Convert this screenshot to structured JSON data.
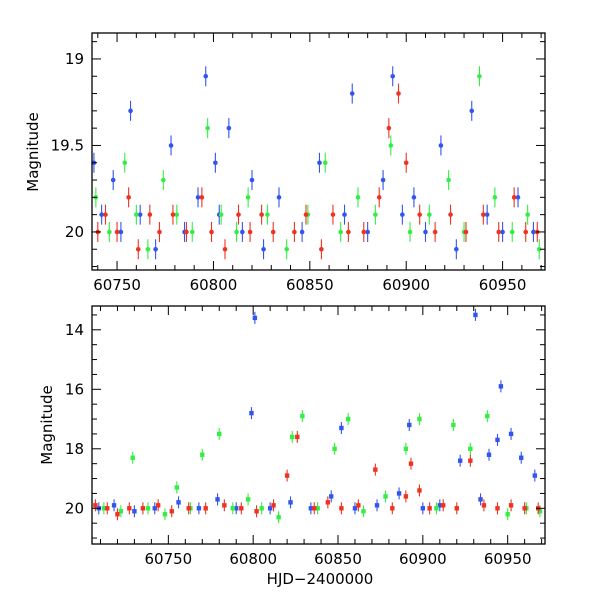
{
  "chart_data": [
    {
      "type": "scatter",
      "panel": "top",
      "title": "",
      "xlabel": "",
      "ylabel": "Magnitude",
      "xlim": [
        60737,
        60972
      ],
      "ylim": [
        20.22,
        18.85
      ],
      "y_inverted": true,
      "xticks": [
        60750,
        60800,
        60850,
        60900,
        60950
      ],
      "xtick_labels": [
        "60750",
        "60800",
        "60850",
        "60900",
        "60950"
      ],
      "yticks": [
        19,
        19.5,
        20
      ],
      "ytick_labels": [
        "19",
        "19.5",
        "20"
      ],
      "grid": false,
      "legend": "none",
      "series": [
        {
          "color": "#3355ee",
          "x": [
            60738,
            60742,
            60748,
            60752,
            60757,
            60762,
            60770,
            60778,
            60785,
            60792,
            60796,
            60801,
            60803,
            60808,
            60815,
            60820,
            60826,
            60834,
            60846,
            60855,
            60868,
            60872,
            60880,
            60888,
            60893,
            60898,
            60904,
            60910,
            60918,
            60926,
            60934,
            60942,
            60950,
            60958,
            60966
          ],
          "y": [
            19.6,
            19.9,
            19.7,
            20.0,
            19.3,
            19.9,
            20.1,
            19.5,
            20.0,
            19.8,
            19.1,
            19.6,
            19.9,
            19.4,
            20.0,
            19.7,
            20.1,
            19.8,
            20.0,
            19.6,
            19.9,
            19.2,
            20.0,
            19.7,
            19.1,
            19.9,
            19.8,
            20.0,
            19.5,
            20.1,
            19.3,
            19.9,
            20.0,
            19.8,
            20.0
          ]
        },
        {
          "color": "#33ee44",
          "x": [
            60739,
            60746,
            60754,
            60760,
            60766,
            60774,
            60781,
            60789,
            60797,
            60804,
            60812,
            60818,
            60828,
            60838,
            60849,
            60858,
            60866,
            60875,
            60884,
            60892,
            60902,
            60912,
            60922,
            60930,
            60938,
            60946,
            60955,
            60963,
            60969
          ],
          "y": [
            19.8,
            20.0,
            19.6,
            19.9,
            20.1,
            19.7,
            19.9,
            20.0,
            19.4,
            19.9,
            20.0,
            19.8,
            19.9,
            20.1,
            19.9,
            19.6,
            20.0,
            19.8,
            19.9,
            19.5,
            20.0,
            19.9,
            19.7,
            20.0,
            19.1,
            19.8,
            20.0,
            19.9,
            20.1
          ]
        },
        {
          "color": "#ee3322",
          "x": [
            60740,
            60744,
            60750,
            60756,
            60761,
            60767,
            60772,
            60779,
            60786,
            60794,
            60799,
            60806,
            60813,
            60819,
            60825,
            60831,
            60842,
            60848,
            60856,
            60862,
            60870,
            60878,
            60886,
            60891,
            60896,
            60900,
            60907,
            60915,
            60923,
            60931,
            60940,
            60948,
            60956,
            60962,
            60968
          ],
          "y": [
            20.0,
            19.9,
            20.0,
            19.8,
            20.1,
            19.9,
            20.0,
            19.9,
            20.0,
            19.8,
            20.0,
            20.1,
            19.9,
            20.0,
            19.9,
            20.0,
            20.0,
            19.9,
            20.1,
            19.9,
            20.0,
            20.0,
            19.8,
            19.4,
            19.2,
            19.6,
            19.9,
            20.0,
            19.9,
            20.0,
            19.9,
            20.0,
            19.8,
            20.0,
            20.0
          ]
        }
      ]
    },
    {
      "type": "scatter",
      "panel": "bottom",
      "title": "",
      "xlabel": "HJD−2400000",
      "ylabel": "Magnitude",
      "xlim": [
        60705,
        60972
      ],
      "ylim": [
        21.2,
        13.2
      ],
      "y_inverted": true,
      "xticks": [
        60750,
        60800,
        60850,
        60900,
        60950
      ],
      "xtick_labels": [
        "60750",
        "60800",
        "60850",
        "60900",
        "60950"
      ],
      "yticks": [
        14,
        16,
        18,
        20
      ],
      "ytick_labels": [
        "14",
        "16",
        "18",
        "20"
      ],
      "grid": false,
      "legend": "none",
      "series": [
        {
          "color": "#3355ee",
          "x": [
            60709,
            60718,
            60730,
            60742,
            60756,
            60768,
            60779,
            60790,
            60799,
            60801,
            60810,
            60822,
            60834,
            60846,
            60852,
            60860,
            60873,
            60886,
            60892,
            60900,
            60910,
            60922,
            60931,
            60934,
            60939,
            60944,
            60946,
            60952,
            60958,
            60966
          ],
          "y": [
            20.0,
            19.9,
            20.1,
            20.0,
            19.8,
            20.0,
            19.7,
            20.0,
            16.8,
            13.6,
            20.0,
            19.8,
            20.0,
            19.6,
            17.3,
            20.0,
            19.9,
            19.5,
            17.2,
            20.0,
            19.9,
            18.4,
            13.5,
            19.7,
            18.2,
            17.7,
            15.9,
            17.5,
            18.3,
            18.9
          ]
        },
        {
          "color": "#33ee44",
          "x": [
            60712,
            60722,
            60729,
            60738,
            60748,
            60755,
            60763,
            60770,
            60780,
            60788,
            60797,
            60805,
            60815,
            60823,
            60829,
            60838,
            60848,
            60856,
            60865,
            60878,
            60890,
            60898,
            60908,
            60918,
            60928,
            60938,
            60950,
            60961,
            60969
          ],
          "y": [
            20.0,
            20.1,
            18.3,
            20.0,
            20.2,
            19.3,
            20.0,
            18.2,
            17.5,
            20.0,
            19.7,
            20.0,
            20.3,
            17.6,
            16.9,
            20.0,
            18.0,
            17.0,
            20.1,
            19.6,
            18.0,
            17.0,
            20.0,
            17.2,
            18.0,
            16.9,
            20.2,
            20.0,
            20.1
          ]
        },
        {
          "color": "#ee3322",
          "x": [
            60707,
            60714,
            60720,
            60727,
            60735,
            60744,
            60752,
            60762,
            60772,
            60783,
            60793,
            60802,
            60812,
            60820,
            60826,
            60836,
            60844,
            60852,
            60862,
            60872,
            60882,
            60890,
            60893,
            60898,
            60904,
            60912,
            60920,
            60928,
            60936,
            60944,
            60952,
            60960,
            60968
          ],
          "y": [
            19.9,
            20.0,
            20.2,
            20.0,
            20.0,
            19.9,
            20.1,
            20.0,
            20.0,
            19.9,
            20.0,
            20.1,
            19.9,
            18.9,
            17.6,
            20.0,
            19.8,
            20.0,
            19.9,
            18.7,
            20.0,
            19.6,
            18.5,
            19.4,
            20.0,
            19.9,
            20.0,
            18.4,
            19.9,
            20.0,
            19.9,
            20.0,
            20.0
          ]
        }
      ]
    }
  ]
}
